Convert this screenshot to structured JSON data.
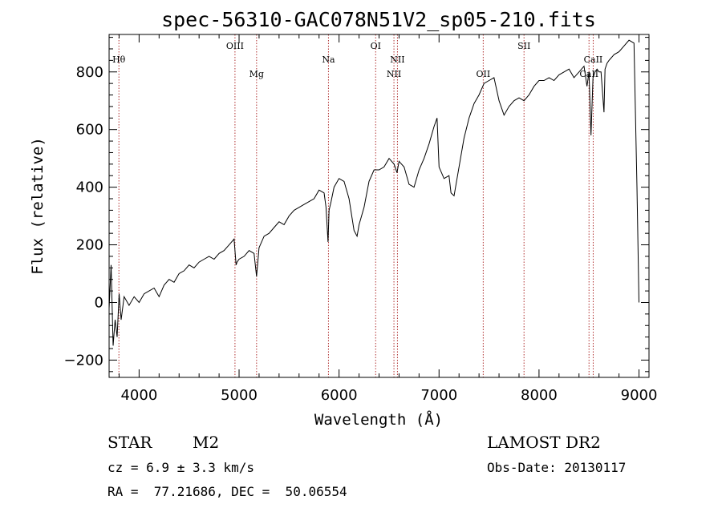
{
  "chart_data": {
    "type": "line",
    "title": "spec-56310-GAC078N51V2_sp05-210.fits",
    "xlabel": "Wavelength (Å)",
    "ylabel": "Flux (relative)",
    "xlim": [
      3700,
      9100
    ],
    "ylim": [
      -260,
      930
    ],
    "xticks": [
      4000,
      5000,
      6000,
      7000,
      8000,
      9000
    ],
    "yticks": [
      -200,
      0,
      200,
      400,
      600,
      800
    ],
    "x_tick_labels": [
      "4000",
      "5000",
      "6000",
      "7000",
      "8000",
      "9000"
    ],
    "y_tick_labels": [
      "−200",
      "0",
      "200",
      "400",
      "600",
      "800"
    ],
    "grid": false,
    "line_color": "#000000",
    "marker_color": "#b03030",
    "spectral_lines": [
      {
        "label": "Hθ",
        "x": 3798,
        "row": "high"
      },
      {
        "label": "OIII",
        "x": 4959,
        "row": "top"
      },
      {
        "label": "Mg",
        "x": 5175,
        "row": "low"
      },
      {
        "label": "Na",
        "x": 5894,
        "row": "high"
      },
      {
        "label": "OI",
        "x": 6366,
        "row": "top"
      },
      {
        "label": "NII",
        "x": 6549,
        "row": "low"
      },
      {
        "label": "NII",
        "x": 6584,
        "row": "high"
      },
      {
        "label": "OII",
        "x": 7442,
        "row": "low"
      },
      {
        "label": "SII",
        "x": 7850,
        "row": "top"
      },
      {
        "label": "CaII",
        "x": 8500,
        "row": "low"
      },
      {
        "label": "CaII",
        "x": 8542,
        "row": "high"
      }
    ],
    "series": [
      {
        "x": [
          3700,
          3720,
          3740,
          3760,
          3780,
          3800,
          3820,
          3850,
          3900,
          3950,
          4000,
          4050,
          4100,
          4150,
          4200,
          4250,
          4300,
          4350,
          4400,
          4450,
          4500,
          4550,
          4600,
          4650,
          4700,
          4750,
          4800,
          4850,
          4900,
          4950,
          4970,
          4980,
          5000,
          5050,
          5100,
          5150,
          5175,
          5190,
          5200,
          5250,
          5300,
          5350,
          5400,
          5450,
          5500,
          5550,
          5600,
          5650,
          5700,
          5750,
          5800,
          5850,
          5870,
          5890,
          5900,
          5920,
          5950,
          6000,
          6050,
          6100,
          6150,
          6180,
          6200,
          6250,
          6300,
          6350,
          6400,
          6450,
          6500,
          6550,
          6580,
          6600,
          6650,
          6700,
          6750,
          6800,
          6850,
          6900,
          6950,
          6980,
          7000,
          7050,
          7100,
          7120,
          7150,
          7200,
          7250,
          7300,
          7350,
          7400,
          7450,
          7500,
          7550,
          7600,
          7650,
          7700,
          7750,
          7800,
          7850,
          7900,
          7950,
          8000,
          8050,
          8100,
          8150,
          8200,
          8250,
          8300,
          8350,
          8400,
          8450,
          8480,
          8500,
          8520,
          8540,
          8550,
          8560,
          8580,
          8600,
          8620,
          8650,
          8660,
          8680,
          8700,
          8750,
          8800,
          8850,
          8900,
          8950,
          8980,
          9000
        ],
        "y": [
          -20,
          130,
          -150,
          -60,
          -120,
          30,
          -60,
          20,
          -10,
          20,
          0,
          30,
          40,
          50,
          20,
          60,
          80,
          70,
          100,
          110,
          130,
          120,
          140,
          150,
          160,
          150,
          170,
          180,
          200,
          220,
          130,
          140,
          150,
          160,
          180,
          170,
          90,
          150,
          190,
          230,
          240,
          260,
          280,
          270,
          300,
          320,
          330,
          340,
          350,
          360,
          390,
          380,
          330,
          210,
          320,
          350,
          400,
          430,
          420,
          360,
          250,
          230,
          270,
          330,
          420,
          460,
          460,
          470,
          500,
          480,
          450,
          490,
          470,
          410,
          400,
          460,
          500,
          550,
          610,
          640,
          470,
          430,
          440,
          380,
          370,
          470,
          570,
          640,
          690,
          720,
          760,
          770,
          780,
          700,
          650,
          680,
          700,
          710,
          700,
          720,
          750,
          770,
          770,
          780,
          770,
          790,
          800,
          810,
          780,
          800,
          820,
          750,
          800,
          580,
          780,
          790,
          800,
          810,
          800,
          800,
          660,
          810,
          830,
          840,
          860,
          870,
          890,
          910,
          900,
          400,
          0
        ]
      }
    ]
  },
  "info": {
    "object_type": "STAR",
    "subclass": "M2",
    "survey": "LAMOST DR2",
    "cz": "cz = 6.9 ± 3.3 km/s",
    "obs_date": "Obs-Date: 20130117",
    "coords": "RA =  77.21686, DEC =  50.06554"
  }
}
